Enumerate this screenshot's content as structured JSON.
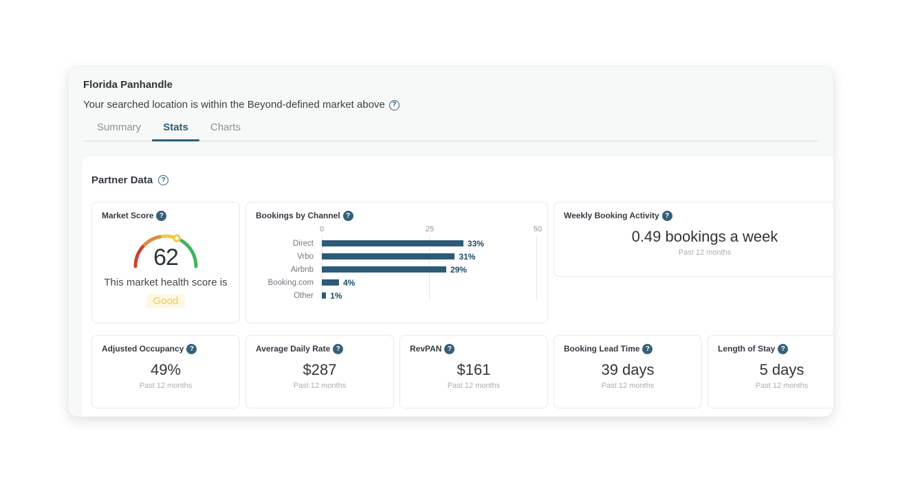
{
  "header": {
    "title": "Florida Panhandle",
    "subtitle": "Your searched location is within the Beyond-defined market above",
    "tabs": [
      {
        "label": "Summary",
        "active": false
      },
      {
        "label": "Stats",
        "active": true
      },
      {
        "label": "Charts",
        "active": false
      }
    ]
  },
  "section": {
    "heading": "Partner Data"
  },
  "cards": {
    "market_score": {
      "title": "Market Score",
      "score": "62",
      "caption": "This market health score is",
      "rating": "Good"
    },
    "bookings_by_channel": {
      "title": "Bookings by Channel"
    },
    "weekly_booking_activity": {
      "title": "Weekly Booking Activity",
      "value": "0.49 bookings a week",
      "period": "Past 12 months"
    },
    "stats": [
      {
        "title": "Adjusted Occupancy",
        "value": "49%",
        "period": "Past 12 months"
      },
      {
        "title": "Average Daily Rate",
        "value": "$287",
        "period": "Past 12 months"
      },
      {
        "title": "RevPAN",
        "value": "$161",
        "period": "Past 12 months"
      },
      {
        "title": "Booking Lead Time",
        "value": "39 days",
        "period": "Past 12 months"
      },
      {
        "title": "Length of Stay",
        "value": "5 days",
        "period": "Past 12 months"
      }
    ]
  },
  "chart_data": [
    {
      "type": "bar",
      "orientation": "horizontal",
      "title": "Bookings by Channel",
      "categories": [
        "Direct",
        "Vrbo",
        "Airbnb",
        "Booking.com",
        "Other"
      ],
      "values": [
        33,
        31,
        29,
        4,
        1
      ],
      "value_labels": [
        "33%",
        "31%",
        "29%",
        "4%",
        "1%"
      ],
      "x_ticks": [
        0,
        25,
        50
      ],
      "xlim": [
        0,
        50
      ],
      "grid": true,
      "bar_color": "#2b5b76"
    },
    {
      "type": "gauge",
      "title": "Market Score",
      "value": 62,
      "range": [
        0,
        100
      ],
      "label": "Good",
      "segment_colors": [
        "#c9452f",
        "#dd8b3e",
        "#f5c73e",
        "#3fb45c"
      ]
    }
  ],
  "colors": {
    "accent_teal": "#2d5c78",
    "bar_teal": "#2b5b76",
    "gauge_red": "#c9452f",
    "gauge_orange": "#dd8b3e",
    "gauge_yellow": "#f5c73e",
    "gauge_green": "#3fb45c",
    "rating_yellow": "#f2c84b",
    "rating_bg": "#fdf8e4",
    "muted_text": "#a9adb2"
  }
}
